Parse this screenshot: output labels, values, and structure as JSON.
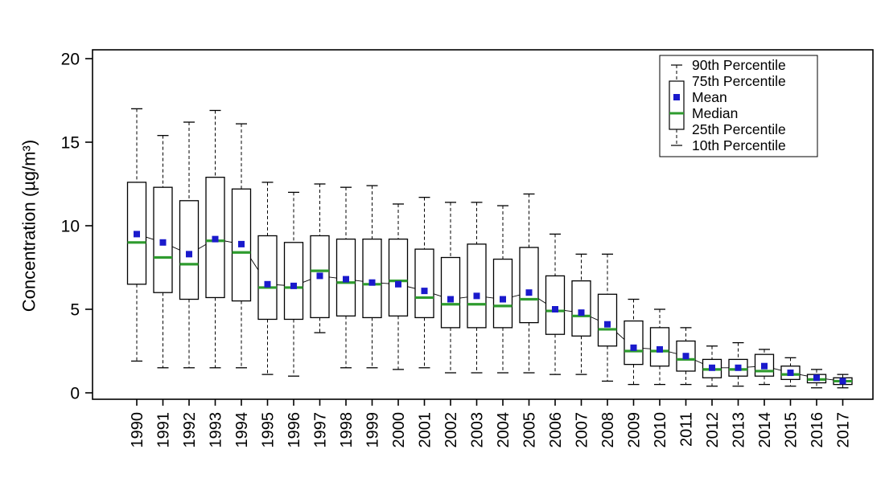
{
  "chart_data": {
    "type": "boxplot",
    "title": "",
    "xlabel": "",
    "ylabel": "Concentration (µg/m³)",
    "ylim": [
      0,
      20
    ],
    "yticks": [
      0,
      5,
      10,
      15,
      20
    ],
    "grid": false,
    "legend_position": "top-right",
    "legend": [
      "90th Percentile",
      "75th Percentile",
      "Mean",
      "Median",
      "25th Percentile",
      "10th Percentile"
    ],
    "colors": {
      "box_stroke": "#000000",
      "box_fill": "#ffffff",
      "median": "#2e9b2e",
      "mean": "#1a1acc",
      "whisker": "#000000",
      "trend_line": "#000000"
    },
    "categories": [
      "1990",
      "1991",
      "1992",
      "1993",
      "1994",
      "1995",
      "1996",
      "1997",
      "1998",
      "1999",
      "2000",
      "2001",
      "2002",
      "2003",
      "2004",
      "2005",
      "2006",
      "2007",
      "2008",
      "2009",
      "2010",
      "2011",
      "2012",
      "2013",
      "2014",
      "2015",
      "2016",
      "2017"
    ],
    "boxes": [
      {
        "year": "1990",
        "p10": 1.9,
        "p25": 6.5,
        "median": 9.0,
        "mean": 9.5,
        "p75": 12.6,
        "p90": 17.0
      },
      {
        "year": "1991",
        "p10": 1.5,
        "p25": 6.0,
        "median": 8.1,
        "mean": 9.0,
        "p75": 12.3,
        "p90": 15.4
      },
      {
        "year": "1992",
        "p10": 1.5,
        "p25": 5.6,
        "median": 7.7,
        "mean": 8.3,
        "p75": 11.5,
        "p90": 16.2
      },
      {
        "year": "1993",
        "p10": 1.5,
        "p25": 5.7,
        "median": 9.1,
        "mean": 9.2,
        "p75": 12.9,
        "p90": 16.9
      },
      {
        "year": "1994",
        "p10": 1.5,
        "p25": 5.5,
        "median": 8.4,
        "mean": 8.9,
        "p75": 12.2,
        "p90": 16.1
      },
      {
        "year": "1995",
        "p10": 1.1,
        "p25": 4.4,
        "median": 6.3,
        "mean": 6.5,
        "p75": 9.4,
        "p90": 12.6
      },
      {
        "year": "1996",
        "p10": 1.0,
        "p25": 4.4,
        "median": 6.3,
        "mean": 6.4,
        "p75": 9.0,
        "p90": 12.0
      },
      {
        "year": "1997",
        "p10": 3.6,
        "p25": 4.5,
        "median": 7.3,
        "mean": 7.0,
        "p75": 9.4,
        "p90": 12.5
      },
      {
        "year": "1998",
        "p10": 1.5,
        "p25": 4.6,
        "median": 6.6,
        "mean": 6.8,
        "p75": 9.2,
        "p90": 12.3
      },
      {
        "year": "1999",
        "p10": 1.5,
        "p25": 4.5,
        "median": 6.5,
        "mean": 6.6,
        "p75": 9.2,
        "p90": 12.4
      },
      {
        "year": "2000",
        "p10": 1.4,
        "p25": 4.6,
        "median": 6.7,
        "mean": 6.5,
        "p75": 9.2,
        "p90": 11.3
      },
      {
        "year": "2001",
        "p10": 1.5,
        "p25": 4.5,
        "median": 5.7,
        "mean": 6.1,
        "p75": 8.6,
        "p90": 11.7
      },
      {
        "year": "2002",
        "p10": 1.2,
        "p25": 3.9,
        "median": 5.3,
        "mean": 5.6,
        "p75": 8.1,
        "p90": 11.4
      },
      {
        "year": "2003",
        "p10": 1.2,
        "p25": 3.9,
        "median": 5.3,
        "mean": 5.8,
        "p75": 8.9,
        "p90": 11.4
      },
      {
        "year": "2004",
        "p10": 1.2,
        "p25": 3.9,
        "median": 5.2,
        "mean": 5.6,
        "p75": 8.0,
        "p90": 11.2
      },
      {
        "year": "2005",
        "p10": 1.2,
        "p25": 4.2,
        "median": 5.6,
        "mean": 6.0,
        "p75": 8.7,
        "p90": 11.9
      },
      {
        "year": "2006",
        "p10": 1.1,
        "p25": 3.5,
        "median": 4.9,
        "mean": 5.0,
        "p75": 7.0,
        "p90": 9.5
      },
      {
        "year": "2007",
        "p10": 1.1,
        "p25": 3.4,
        "median": 4.6,
        "mean": 4.8,
        "p75": 6.7,
        "p90": 8.3
      },
      {
        "year": "2008",
        "p10": 0.7,
        "p25": 2.8,
        "median": 3.8,
        "mean": 4.1,
        "p75": 5.9,
        "p90": 8.3
      },
      {
        "year": "2009",
        "p10": 0.5,
        "p25": 1.7,
        "median": 2.5,
        "mean": 2.7,
        "p75": 4.3,
        "p90": 5.6
      },
      {
        "year": "2010",
        "p10": 0.5,
        "p25": 1.6,
        "median": 2.5,
        "mean": 2.6,
        "p75": 3.9,
        "p90": 5.0
      },
      {
        "year": "2011",
        "p10": 0.5,
        "p25": 1.3,
        "median": 2.0,
        "mean": 2.2,
        "p75": 3.1,
        "p90": 3.9
      },
      {
        "year": "2012",
        "p10": 0.4,
        "p25": 0.9,
        "median": 1.4,
        "mean": 1.5,
        "p75": 2.0,
        "p90": 2.8
      },
      {
        "year": "2013",
        "p10": 0.4,
        "p25": 1.0,
        "median": 1.4,
        "mean": 1.5,
        "p75": 2.0,
        "p90": 3.0
      },
      {
        "year": "2014",
        "p10": 0.5,
        "p25": 1.0,
        "median": 1.3,
        "mean": 1.6,
        "p75": 2.3,
        "p90": 2.6
      },
      {
        "year": "2015",
        "p10": 0.4,
        "p25": 0.8,
        "median": 1.1,
        "mean": 1.2,
        "p75": 1.6,
        "p90": 2.1
      },
      {
        "year": "2016",
        "p10": 0.3,
        "p25": 0.6,
        "median": 0.8,
        "mean": 0.9,
        "p75": 1.1,
        "p90": 1.4
      },
      {
        "year": "2017",
        "p10": 0.3,
        "p25": 0.5,
        "median": 0.7,
        "mean": 0.7,
        "p75": 0.9,
        "p90": 1.1
      }
    ]
  }
}
